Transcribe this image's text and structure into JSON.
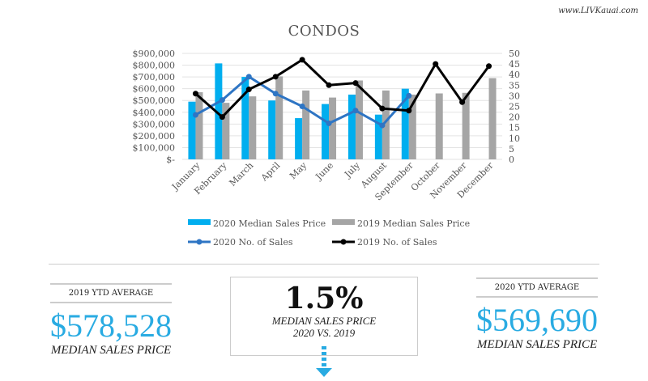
{
  "site": "www.LIVKauai.com",
  "chart_data": {
    "type": "bar",
    "title": "CONDOS",
    "categories": [
      "January",
      "February",
      "March",
      "April",
      "May",
      "June",
      "July",
      "August",
      "September",
      "October",
      "November",
      "December"
    ],
    "left_axis": {
      "ylim": [
        0,
        900000
      ],
      "ticks": [
        "$-",
        "$100,000",
        "$200,000",
        "$300,000",
        "$400,000",
        "$500,000",
        "$600,000",
        "$700,000",
        "$800,000",
        "$900,000"
      ]
    },
    "right_axis": {
      "ylim": [
        0,
        50
      ],
      "ticks": [
        "0",
        "5",
        "10",
        "15",
        "20",
        "25",
        "30",
        "35",
        "40",
        "45",
        "50"
      ]
    },
    "series": [
      {
        "name": "2020 Median Sales Price",
        "type": "bar",
        "axis": "left",
        "color": "#00aeef",
        "values": [
          490000,
          815000,
          700000,
          500000,
          350000,
          470000,
          550000,
          380000,
          600000,
          null,
          null,
          null
        ]
      },
      {
        "name": "2019 Median Sales Price",
        "type": "bar",
        "axis": "left",
        "color": "#a5a5a5",
        "values": [
          570000,
          480000,
          535000,
          705000,
          585000,
          525000,
          670000,
          585000,
          550000,
          560000,
          565000,
          690000
        ]
      },
      {
        "name": "2020 No. of Sales",
        "type": "line",
        "axis": "right",
        "color": "#2e75c4",
        "values": [
          21,
          28,
          39,
          31,
          25,
          17,
          23,
          16,
          30,
          null,
          null,
          null
        ]
      },
      {
        "name": "2019 No. of Sales",
        "type": "line",
        "axis": "right",
        "color": "#000000",
        "values": [
          31,
          20,
          33,
          39,
          47,
          35,
          36,
          24,
          23,
          45,
          27,
          44
        ]
      }
    ],
    "grid": true,
    "legend": "bottom"
  },
  "stats": {
    "left": {
      "label": "2019 YTD AVERAGE",
      "value": "$578,528",
      "sub": "MEDIAN SALES PRICE"
    },
    "center": {
      "value": "1.5%",
      "line1": "MEDIAN SALES PRICE",
      "line2": "2020 VS. 2019"
    },
    "right": {
      "label": "2020 YTD AVERAGE",
      "value": "$569,690",
      "sub": "MEDIAN SALES PRICE"
    }
  }
}
